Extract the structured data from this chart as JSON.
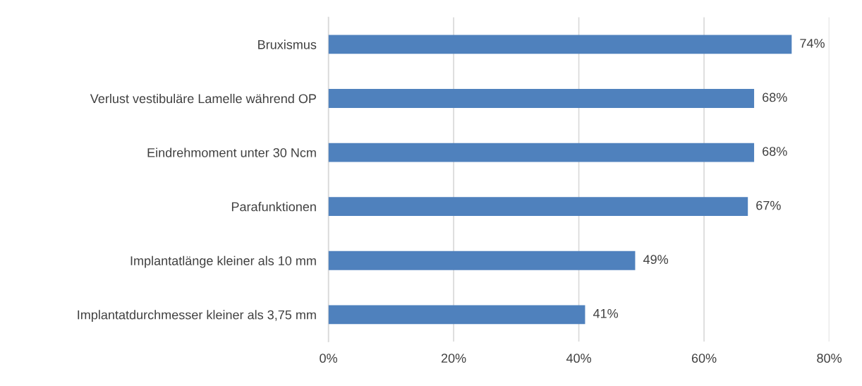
{
  "chart_data": {
    "type": "bar",
    "orientation": "horizontal",
    "categories": [
      "Bruxismus",
      "Verlust vestibuläre Lamelle während OP",
      "Eindrehmoment unter 30 Ncm",
      "Parafunktionen",
      "Implantatlänge kleiner als 10 mm",
      "Implantatdurchmesser kleiner als 3,75 mm"
    ],
    "values": [
      74,
      68,
      68,
      67,
      49,
      41
    ],
    "value_labels": [
      "74%",
      "68%",
      "68%",
      "67%",
      "49%",
      "41%"
    ],
    "color": "#4f81bd",
    "xlim": [
      0,
      80
    ],
    "xticks": [
      {
        "value": 0,
        "label": "0%"
      },
      {
        "value": 20,
        "label": "20%"
      },
      {
        "value": 40,
        "label": "40%"
      },
      {
        "value": 60,
        "label": "60%"
      },
      {
        "value": 80,
        "label": "80%"
      }
    ],
    "grid": "x"
  }
}
